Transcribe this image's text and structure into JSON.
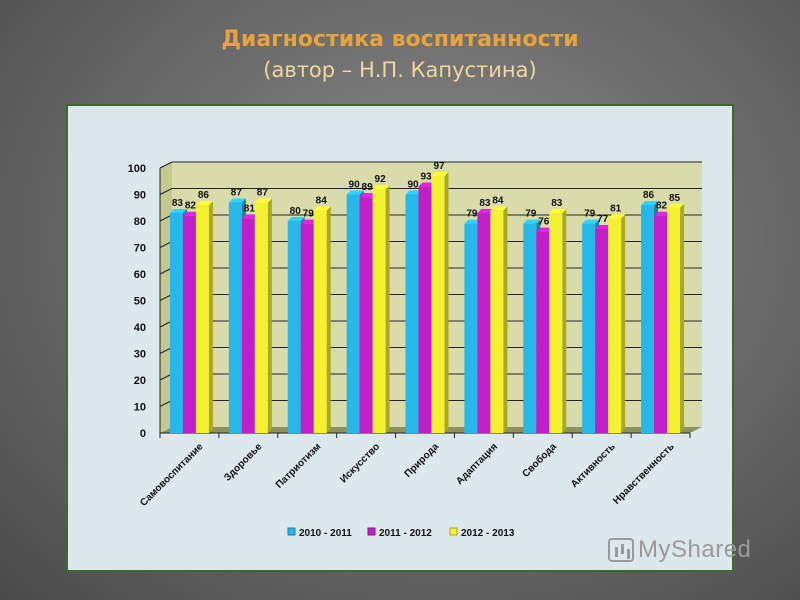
{
  "page": {
    "title": "Диагностика воспитанности",
    "subtitle": "(автор – Н.П. Капустина)",
    "watermark": "MyShared"
  },
  "chart_data": {
    "type": "bar",
    "title": "",
    "xlabel": "",
    "ylabel": "",
    "ylim": [
      0,
      100
    ],
    "yticks": [
      0,
      10,
      20,
      30,
      40,
      50,
      60,
      70,
      80,
      90,
      100
    ],
    "grid": true,
    "legend_position": "bottom",
    "categories": [
      "Самовоспитание",
      "Здоровье",
      "Патриотизм",
      "Искусство",
      "Природа",
      "Адаптация",
      "Свобода",
      "Активность",
      "Нравственность"
    ],
    "series": [
      {
        "name": "2010 - 2011",
        "color": "#27b7e8",
        "values": [
          83,
          87,
          80,
          90,
          90,
          79,
          79,
          79,
          86
        ]
      },
      {
        "name": "2011 - 2012",
        "color": "#c21fc8",
        "values": [
          82,
          81,
          79,
          89,
          93,
          83,
          76,
          77,
          82
        ]
      },
      {
        "name": "2012 - 2013",
        "color": "#f4f032",
        "values": [
          86,
          87,
          84,
          92,
          97,
          84,
          83,
          81,
          85
        ]
      }
    ]
  }
}
